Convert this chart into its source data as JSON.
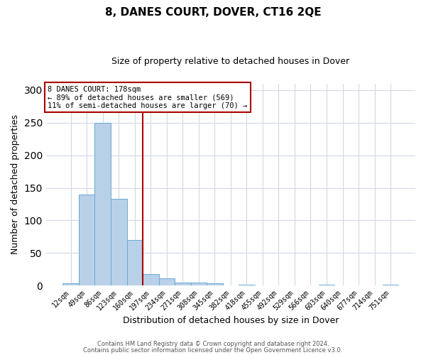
{
  "title": "8, DANES COURT, DOVER, CT16 2QE",
  "subtitle": "Size of property relative to detached houses in Dover",
  "xlabel": "Distribution of detached houses by size in Dover",
  "ylabel": "Number of detached properties",
  "bar_labels": [
    "12sqm",
    "49sqm",
    "86sqm",
    "123sqm",
    "160sqm",
    "197sqm",
    "234sqm",
    "271sqm",
    "308sqm",
    "345sqm",
    "382sqm",
    "418sqm",
    "455sqm",
    "492sqm",
    "529sqm",
    "566sqm",
    "603sqm",
    "640sqm",
    "677sqm",
    "714sqm",
    "751sqm"
  ],
  "bar_values": [
    3,
    140,
    250,
    133,
    70,
    18,
    11,
    5,
    4,
    3,
    0,
    1,
    0,
    0,
    0,
    0,
    1,
    0,
    0,
    0,
    1
  ],
  "bar_color": "#b8d0e8",
  "bar_edge_color": "#6aaad4",
  "ylim": [
    0,
    310
  ],
  "vline_x": 4.5,
  "vline_color": "#aa0000",
  "annotation_text": "8 DANES COURT: 178sqm\n← 89% of detached houses are smaller (569)\n11% of semi-detached houses are larger (70) →",
  "annotation_box_color": "#aa0000",
  "footer_line1": "Contains HM Land Registry data © Crown copyright and database right 2024.",
  "footer_line2": "Contains public sector information licensed under the Open Government Licence v3.0.",
  "background_color": "#ffffff",
  "grid_color": "#d0d8e8",
  "title_fontsize": 11,
  "subtitle_fontsize": 9
}
